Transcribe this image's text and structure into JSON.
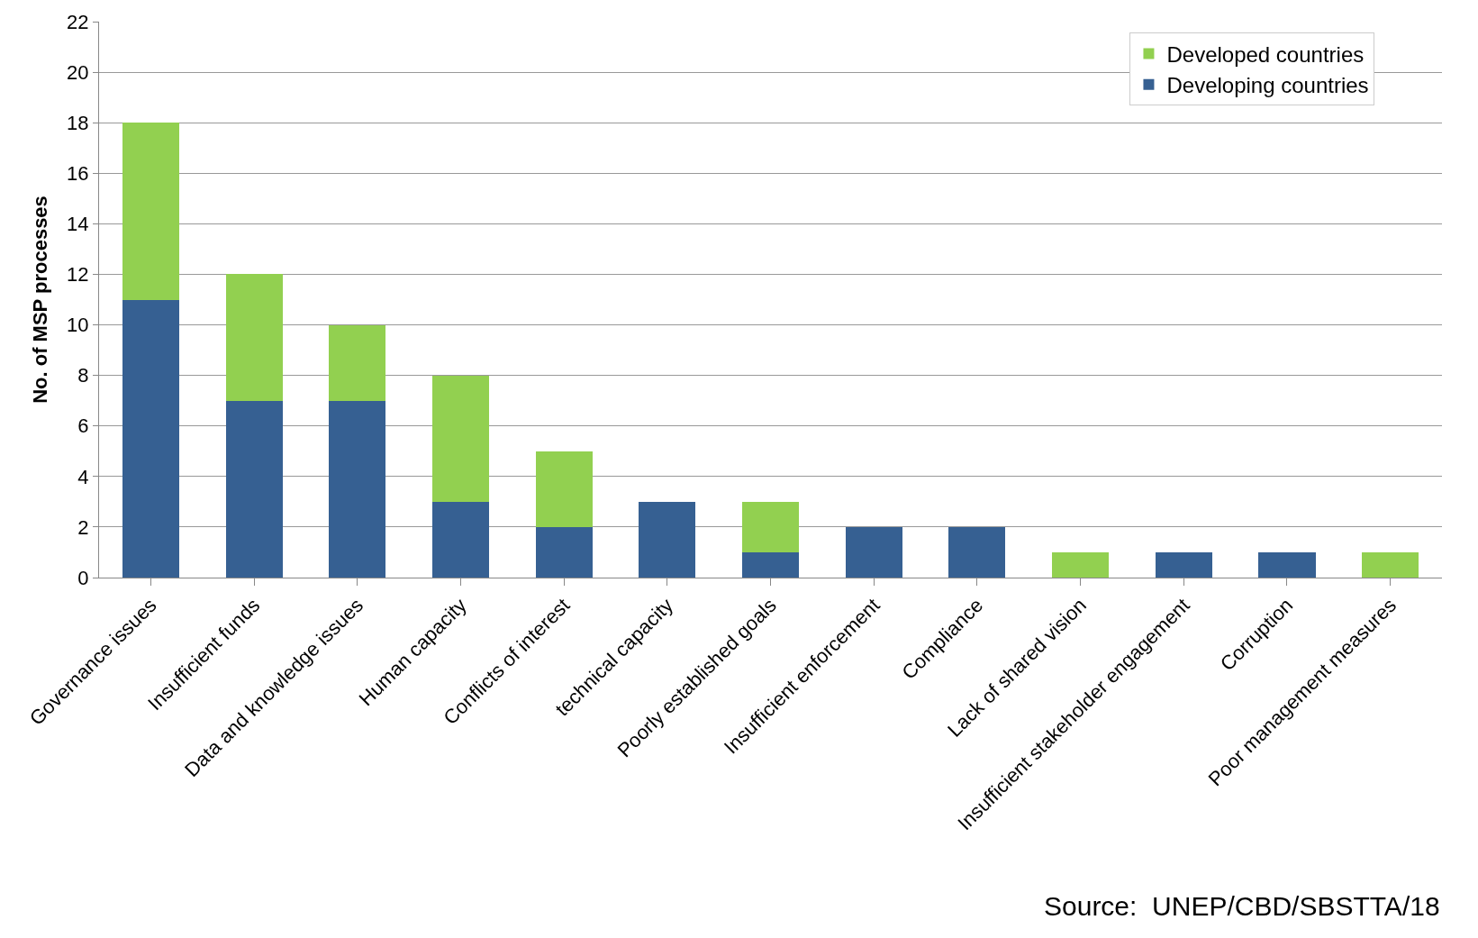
{
  "chart_data": {
    "type": "bar",
    "stacked": true,
    "ylabel": "No. of MSP processes",
    "categories": [
      "Governance issues",
      "Insufficient funds",
      "Data and knowledge issues",
      "Human capacity",
      "Conflicts of interest",
      "technical capacity",
      "Poorly established goals",
      "Insufficient enforcement",
      "Compliance",
      "Lack of shared vision",
      "Insufficient stakeholder engagement",
      "Corruption",
      "Poor management measures"
    ],
    "series": [
      {
        "name": "Developing countries",
        "color": "#366092",
        "values": [
          11,
          7,
          7,
          3,
          2,
          3,
          1,
          2,
          2,
          0,
          1,
          1,
          0
        ]
      },
      {
        "name": "Developed countries",
        "color": "#92d050",
        "values": [
          7,
          5,
          3,
          5,
          3,
          0,
          2,
          0,
          0,
          1,
          0,
          0,
          1
        ]
      }
    ],
    "ylim": [
      0,
      22
    ],
    "yticks": [
      0,
      2,
      4,
      6,
      8,
      10,
      12,
      14,
      16,
      18,
      20,
      22
    ],
    "grid": "y",
    "legend": "top right",
    "annotations": [
      "Source:  UNEP/CBD/SBSTTA/18"
    ]
  }
}
